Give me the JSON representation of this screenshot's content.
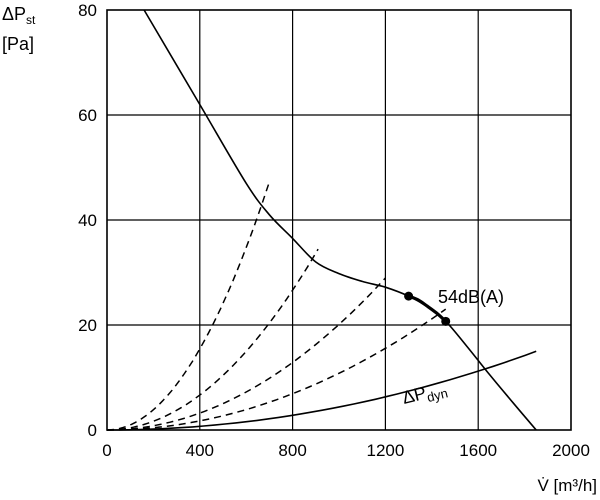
{
  "chart_data": {
    "type": "line",
    "ylabel_main": "ΔP",
    "ylabel_sub": "st",
    "yunit": "[Pa]",
    "xlabel": "V̇ [m³/h]",
    "xlim": [
      0,
      2000
    ],
    "ylim": [
      0,
      80
    ],
    "xticks": [
      0,
      400,
      800,
      1200,
      1600,
      2000
    ],
    "yticks": [
      0,
      20,
      40,
      60,
      80
    ],
    "grid": true,
    "fan_curve": {
      "x": [
        160,
        400,
        600,
        700,
        800,
        900,
        1000,
        1100,
        1200,
        1300,
        1380,
        1460,
        1550,
        1650,
        1750,
        1850
      ],
      "y": [
        80,
        62,
        47,
        41,
        36.5,
        32,
        29.8,
        28.3,
        27.2,
        25.5,
        23.5,
        20.7,
        16,
        10.5,
        5.2,
        0
      ]
    },
    "operating_segment": {
      "x": [
        1300,
        1340,
        1380,
        1420,
        1460
      ],
      "y": [
        25.5,
        24.8,
        23.6,
        22.3,
        20.7
      ],
      "label": "54dB(A)"
    },
    "system_curves": [
      {
        "k": 9.65e-05,
        "x_end": 700
      },
      {
        "k": 4.16e-05,
        "x_end": 910
      },
      {
        "k": 2.01e-05,
        "x_end": 1200
      },
      {
        "k": 1.08e-05,
        "x_end": 1460
      }
    ],
    "dynamic_pressure": {
      "k": 4.38e-06,
      "x_end": 1850,
      "label_main": "ΔP",
      "label_sub": "dyn"
    }
  }
}
